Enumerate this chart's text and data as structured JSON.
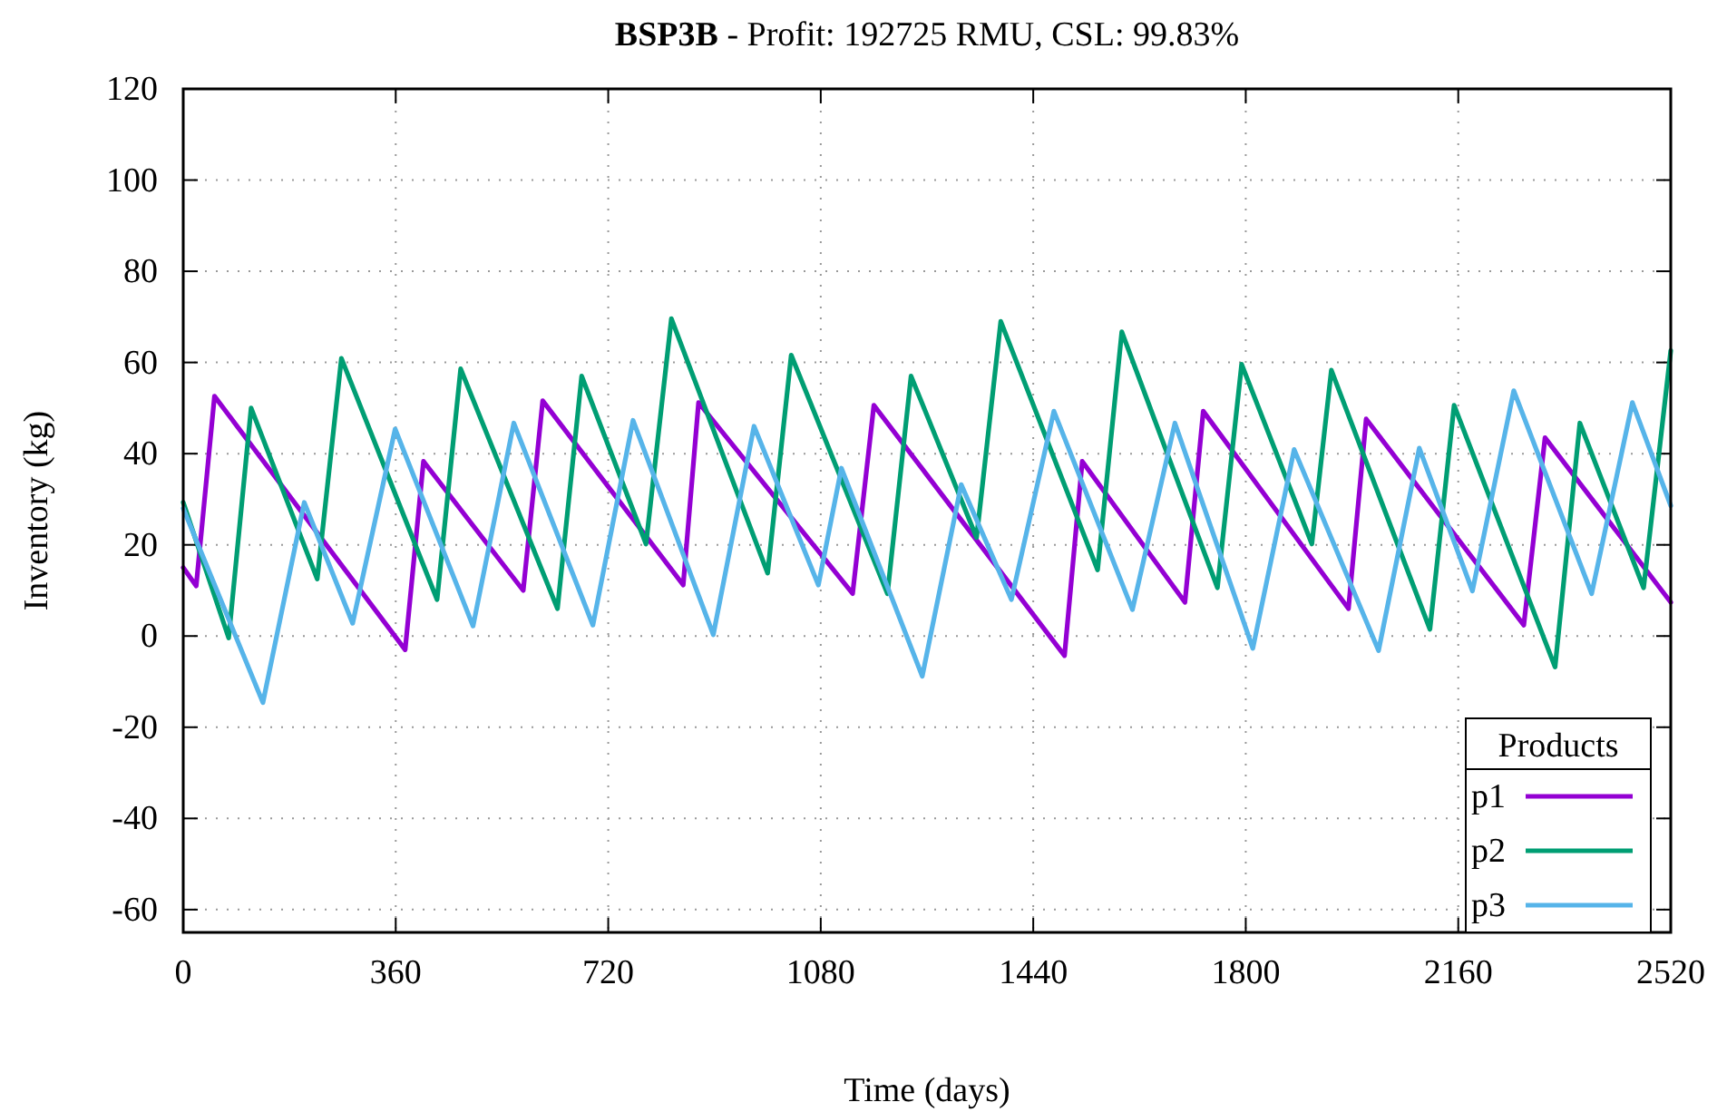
{
  "chart_data": {
    "type": "line",
    "title": "BSP3B - Profit: 192725 RMU, CSL: 99.83%",
    "xlabel": "Time (days)",
    "ylabel": "Inventory (kg)",
    "legend_title": "Products",
    "legend": "bottom right",
    "grid": true,
    "marker": "none",
    "line_style": "solid",
    "xlim": [
      0,
      2520
    ],
    "xticks": [
      0,
      360,
      720,
      1080,
      1440,
      1800,
      2160,
      2520
    ],
    "ylim": [
      -65,
      120
    ],
    "yticks": [
      -60,
      -40,
      -20,
      0,
      20,
      40,
      60,
      80,
      100,
      120
    ],
    "series": [
      {
        "name": "p1",
        "color": "#9400d3",
        "x": [
          0,
          22,
          53,
          376,
          407,
          576,
          609,
          847,
          873,
          1134,
          1170,
          1493,
          1523,
          1697,
          1728,
          1974,
          2004,
          2271,
          2307,
          2520
        ],
        "values": [
          15,
          11,
          52.6,
          -3,
          38.3,
          10,
          51.6,
          11.2,
          51.2,
          9.3,
          50.6,
          -4.3,
          38.3,
          7.4,
          49.3,
          6,
          47.6,
          2.4,
          43.5,
          7.4
        ]
      },
      {
        "name": "p2",
        "color": "#009e73",
        "x": [
          0,
          77,
          115,
          227,
          268,
          430,
          470,
          634,
          675,
          784,
          827,
          990,
          1030,
          1193,
          1233,
          1344,
          1385,
          1549,
          1590,
          1752,
          1793,
          1912,
          1945,
          2112,
          2153,
          2324,
          2366,
          2474,
          2520
        ],
        "values": [
          29.3,
          -0.4,
          50,
          12.5,
          60.9,
          8,
          58.6,
          6,
          57,
          20.2,
          69.6,
          13.8,
          61.6,
          9.3,
          57,
          21.6,
          69,
          14.5,
          66.7,
          10.6,
          59.6,
          20.2,
          58.3,
          1.5,
          50.6,
          -6.8,
          46.7,
          10.6,
          62.6
        ]
      },
      {
        "name": "p3",
        "color": "#56b4e9",
        "x": [
          0,
          135,
          205,
          287,
          359,
          491,
          560,
          694,
          762,
          898,
          967,
          1076,
          1115,
          1252,
          1318,
          1403,
          1475,
          1608,
          1680,
          1812,
          1882,
          2025,
          2094,
          2184,
          2254,
          2386,
          2455,
          2520
        ],
        "values": [
          28,
          -14.6,
          29.3,
          2.8,
          45.4,
          2.2,
          46.7,
          2.4,
          47.3,
          0.3,
          46,
          11.2,
          36.8,
          -8.8,
          33.2,
          8,
          49.3,
          5.8,
          46.7,
          -2.7,
          40.9,
          -3.2,
          41.2,
          9.9,
          53.8,
          9.3,
          51.2,
          28.6
        ]
      }
    ]
  }
}
